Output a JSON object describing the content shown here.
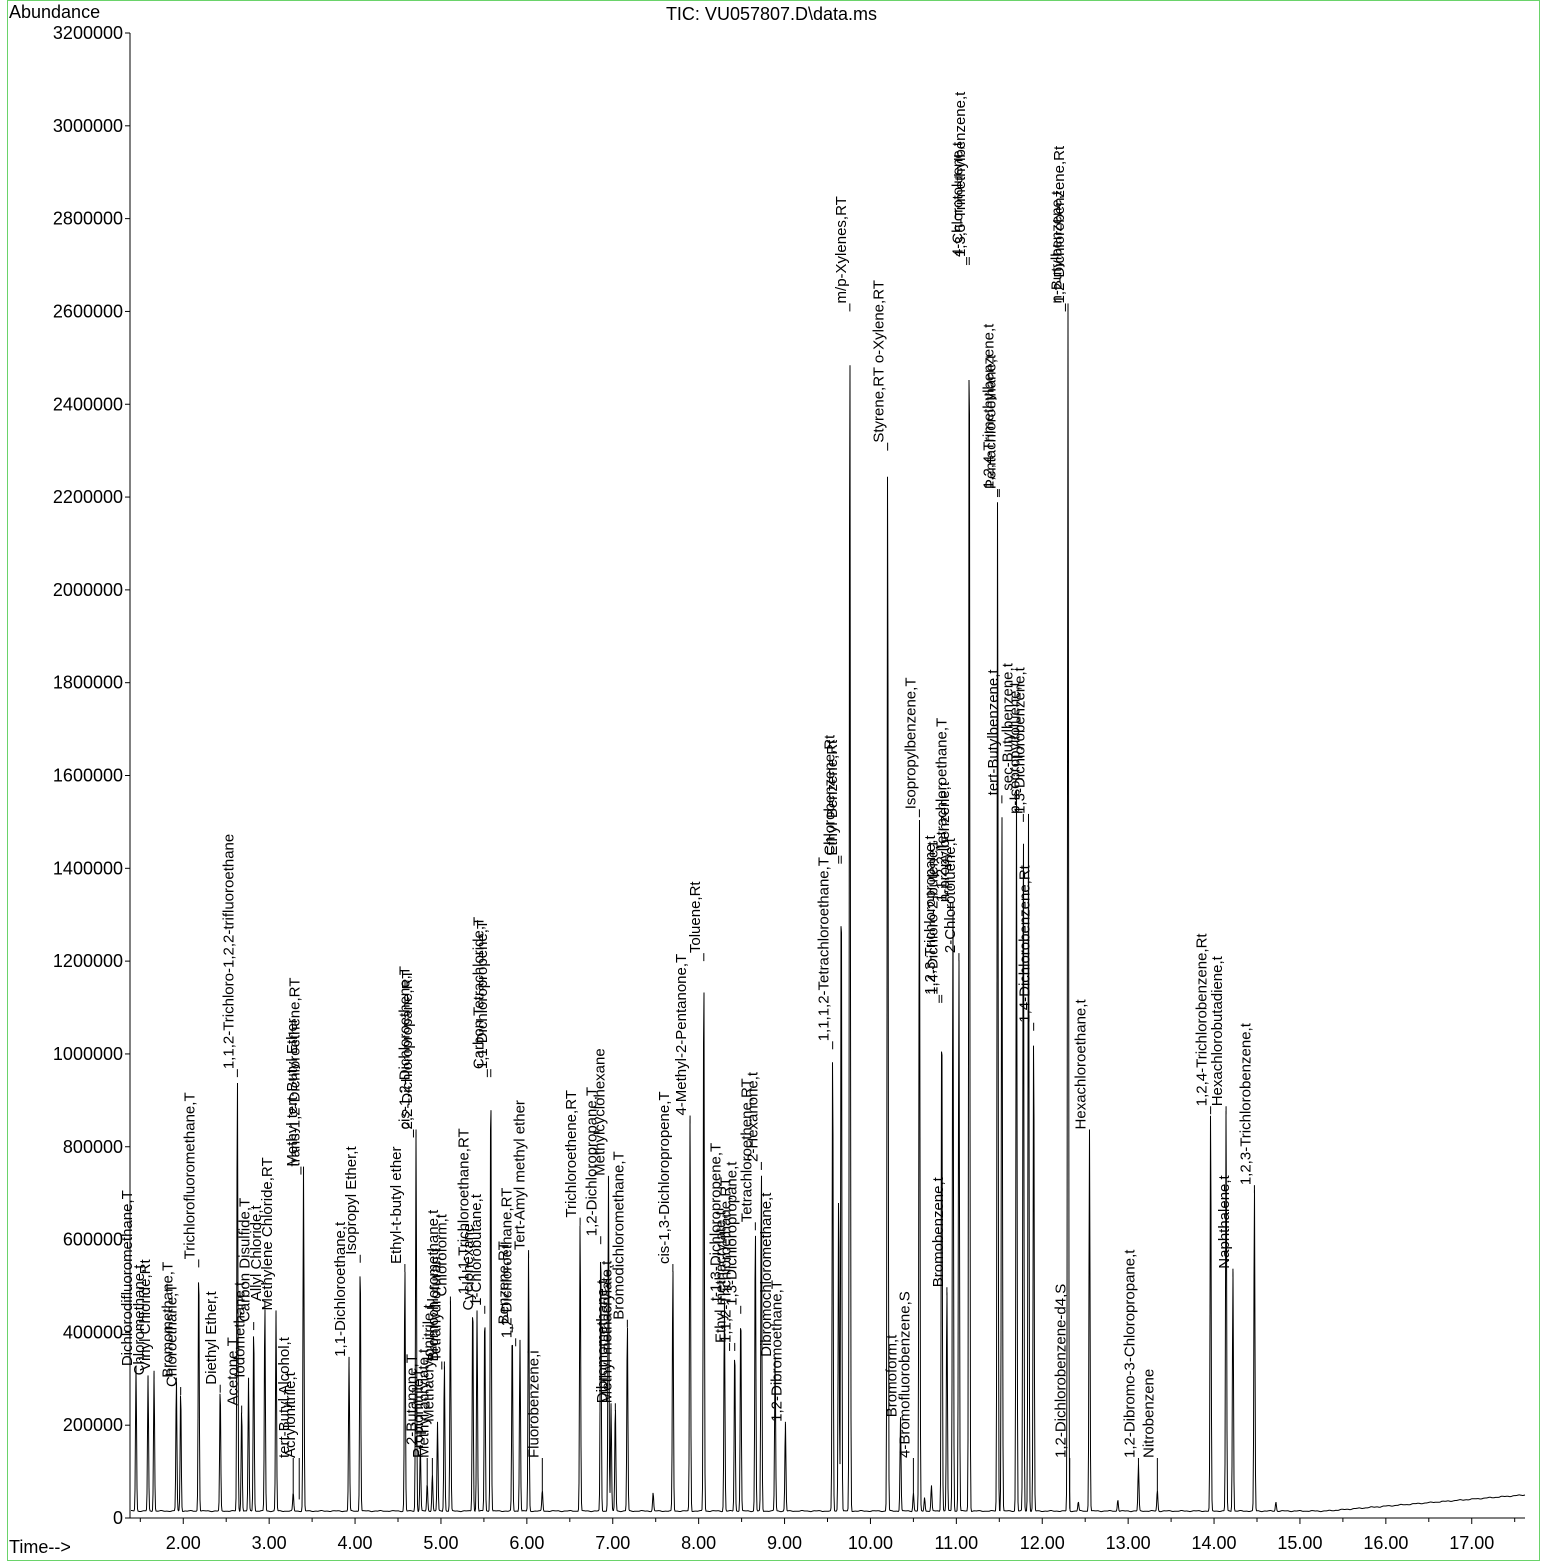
{
  "title": "TIC: VU057807.D\\data.ms",
  "ylabel": "Abundance",
  "xlabel": "Time-->",
  "colors": {
    "trace": "#000000",
    "frame": "#6ad36a",
    "axis": "#000000"
  },
  "chart_data": {
    "type": "line",
    "title": "TIC: VU057807.D\\data.ms",
    "xlabel": "Time-->",
    "ylabel": "Abundance",
    "xlim": [
      1.38,
      17.62
    ],
    "ylim": [
      0,
      3200000
    ],
    "x_ticks": [
      2.0,
      3.0,
      4.0,
      5.0,
      6.0,
      7.0,
      8.0,
      9.0,
      10.0,
      11.0,
      12.0,
      13.0,
      14.0,
      15.0,
      16.0,
      17.0
    ],
    "x_tick_labels": [
      "2.00",
      "3.00",
      "4.00",
      "5.00",
      "6.00",
      "7.00",
      "8.00",
      "9.00",
      "10.00",
      "11.00",
      "12.00",
      "13.00",
      "14.00",
      "15.00",
      "16.00",
      "17.00"
    ],
    "y_ticks": [
      0,
      200000,
      400000,
      600000,
      800000,
      1000000,
      1200000,
      1400000,
      1600000,
      1800000,
      2000000,
      2200000,
      2400000,
      2600000,
      2800000,
      3000000,
      3200000
    ],
    "grid": false,
    "baseline": 15000,
    "peaks": [
      {
        "rt": 1.45,
        "height": 310000
      },
      {
        "rt": 1.59,
        "height": 290000
      },
      {
        "rt": 1.66,
        "height": 300000
      },
      {
        "rt": 1.92,
        "height": 285000
      },
      {
        "rt": 1.97,
        "height": 265000
      },
      {
        "rt": 2.18,
        "height": 540000
      },
      {
        "rt": 2.43,
        "height": 270000
      },
      {
        "rt": 2.63,
        "height": 950000
      },
      {
        "rt": 2.68,
        "height": 225000
      },
      {
        "rt": 2.76,
        "height": 285000
      },
      {
        "rt": 2.82,
        "height": 405000
      },
      {
        "rt": 2.95,
        "height": 450000
      },
      {
        "rt": 3.08,
        "height": 430000
      },
      {
        "rt": 3.28,
        "height": 40000
      },
      {
        "rt": 3.4,
        "height": 740000
      },
      {
        "rt": 3.93,
        "height": 330000
      },
      {
        "rt": 4.06,
        "height": 550000
      },
      {
        "rt": 4.58,
        "height": 530000
      },
      {
        "rt": 4.71,
        "height": 820000
      },
      {
        "rt": 4.76,
        "height": 140000
      },
      {
        "rt": 4.84,
        "height": 60000
      },
      {
        "rt": 4.9,
        "height": 80000
      },
      {
        "rt": 4.96,
        "height": 190000
      },
      {
        "rt": 5.04,
        "height": 320000
      },
      {
        "rt": 5.11,
        "height": 460000
      },
      {
        "rt": 5.37,
        "height": 465000
      },
      {
        "rt": 5.42,
        "height": 430000
      },
      {
        "rt": 5.51,
        "height": 440000
      },
      {
        "rt": 5.58,
        "height": 950000
      },
      {
        "rt": 5.83,
        "height": 400000
      },
      {
        "rt": 5.92,
        "height": 370000
      },
      {
        "rt": 6.02,
        "height": 560000
      },
      {
        "rt": 6.18,
        "height": 45000
      },
      {
        "rt": 6.62,
        "height": 630000
      },
      {
        "rt": 6.86,
        "height": 590000
      },
      {
        "rt": 6.95,
        "height": 720000
      },
      {
        "rt": 6.98,
        "height": 230000
      },
      {
        "rt": 7.03,
        "height": 230000
      },
      {
        "rt": 7.17,
        "height": 410000
      },
      {
        "rt": 7.47,
        "height": 40000
      },
      {
        "rt": 7.7,
        "height": 530000
      },
      {
        "rt": 7.9,
        "height": 850000
      },
      {
        "rt": 8.06,
        "height": 1200000
      },
      {
        "rt": 8.3,
        "height": 450000
      },
      {
        "rt": 8.42,
        "height": 360000
      },
      {
        "rt": 8.49,
        "height": 440000
      },
      {
        "rt": 8.66,
        "height": 620000
      },
      {
        "rt": 8.73,
        "height": 750000
      },
      {
        "rt": 8.89,
        "height": 330000
      },
      {
        "rt": 9.01,
        "height": 190000
      },
      {
        "rt": 9.56,
        "height": 1010000
      },
      {
        "rt": 9.63,
        "height": 700000
      },
      {
        "rt": 9.66,
        "height": 1410000
      },
      {
        "rt": 9.76,
        "height": 2600000
      },
      {
        "rt": 10.2,
        "height": 2300000
      },
      {
        "rt": 10.35,
        "height": 200000
      },
      {
        "rt": 10.5,
        "height": 40000
      },
      {
        "rt": 10.57,
        "height": 1510000
      },
      {
        "rt": 10.63,
        "height": 30000
      },
      {
        "rt": 10.71,
        "height": 55000
      },
      {
        "rt": 10.83,
        "height": 1110000
      },
      {
        "rt": 10.89,
        "height": 480000
      },
      {
        "rt": 10.96,
        "height": 1310000
      },
      {
        "rt": 11.03,
        "height": 1200000
      },
      {
        "rt": 11.15,
        "height": 2700000
      },
      {
        "rt": 11.48,
        "height": 2200000
      },
      {
        "rt": 11.53,
        "height": 1540000
      },
      {
        "rt": 11.7,
        "height": 1550000
      },
      {
        "rt": 11.78,
        "height": 1500000
      },
      {
        "rt": 11.84,
        "height": 1500000
      },
      {
        "rt": 11.9,
        "height": 1050000
      },
      {
        "rt": 12.3,
        "height": 2600000
      },
      {
        "rt": 12.42,
        "height": 20000
      },
      {
        "rt": 12.55,
        "height": 820000
      },
      {
        "rt": 12.88,
        "height": 25000
      },
      {
        "rt": 13.12,
        "height": 100000
      },
      {
        "rt": 13.34,
        "height": 45000
      },
      {
        "rt": 13.96,
        "height": 870000
      },
      {
        "rt": 14.14,
        "height": 870000
      },
      {
        "rt": 14.22,
        "height": 520000
      },
      {
        "rt": 14.47,
        "height": 700000
      },
      {
        "rt": 14.72,
        "height": 20000
      }
    ],
    "annotations": [
      {
        "label": "Dichlorodifluoromethane,T",
        "rt": 1.45,
        "height": 310000
      },
      {
        "label": "Chloromethane,t",
        "rt": 1.59,
        "height": 290000
      },
      {
        "label": "Vinyl Chloride,Rt",
        "rt": 1.66,
        "height": 300000
      },
      {
        "label": "Bromomethane,T",
        "rt": 1.92,
        "height": 285000
      },
      {
        "label": "Chloroethane,T",
        "rt": 1.97,
        "height": 265000
      },
      {
        "label": "Trichlorofluoromethane,T",
        "rt": 2.18,
        "height": 540000
      },
      {
        "label": "Diethyl Ether,t",
        "rt": 2.43,
        "height": 270000
      },
      {
        "label": "1,1,2-Trichloro-1,2,2-trifluoroethane",
        "rt": 2.63,
        "height": 950000
      },
      {
        "label": "Acetone,T",
        "rt": 2.68,
        "height": 225000
      },
      {
        "label": "Iodomethane,t",
        "rt": 2.76,
        "height": 285000
      },
      {
        "label": "Carbon Disulfide,T",
        "rt": 2.82,
        "height": 405000
      },
      {
        "label": "Allyl Chloride,t",
        "rt": 2.95,
        "height": 450000
      },
      {
        "label": "Methylene Chloride,RT",
        "rt": 3.08,
        "height": 430000
      },
      {
        "label": "tert-Butyl Alcohol,t",
        "rt": 3.28,
        "height": 40000
      },
      {
        "label": "Acrylonitrile,t",
        "rt": 3.35,
        "height": 40000
      },
      {
        "label": "Methyl tert-Butyl Ether",
        "rt": 3.37,
        "height": 740000
      },
      {
        "label": "trans-1,2-Dichloroethene,RT",
        "rt": 3.4,
        "height": 740000
      },
      {
        "label": "1,1-Dichloroethane,t",
        "rt": 3.93,
        "height": 330000
      },
      {
        "label": "Isopropyl Ether,t",
        "rt": 4.06,
        "height": 550000
      },
      {
        "label": "Ethyl-t-butyl ether",
        "rt": 4.58,
        "height": 530000
      },
      {
        "label": "cis-1,2-Dichloroethene,T",
        "rt": 4.68,
        "height": 820000
      },
      {
        "label": "2,2-Dichloropropane,RT",
        "rt": 4.71,
        "height": 820000
      },
      {
        "label": "2-Butanone,T",
        "rt": 4.76,
        "height": 140000
      },
      {
        "label": "Propionitrile,t",
        "rt": 4.84,
        "height": 60000
      },
      {
        "label": "Methyl acrylate,t",
        "rt": 4.9,
        "height": 80000
      },
      {
        "label": "Methacrylonitrile,t",
        "rt": 4.96,
        "height": 190000
      },
      {
        "label": "Bromochloromethane,t",
        "rt": 5.01,
        "height": 320000
      },
      {
        "label": "Tetrahydrofuran,t",
        "rt": 5.04,
        "height": 320000
      },
      {
        "label": "Chloroform,t",
        "rt": 5.11,
        "height": 460000
      },
      {
        "label": "1,1,1-Trichloroethane,RT",
        "rt": 5.37,
        "height": 465000
      },
      {
        "label": "Cyclohexane",
        "rt": 5.42,
        "height": 430000
      },
      {
        "label": "1-Chlorobutane,t",
        "rt": 5.51,
        "height": 440000
      },
      {
        "label": "Carbon Tetrachloride,T",
        "rt": 5.54,
        "height": 950000
      },
      {
        "label": "1,1-Dichloropropene,T",
        "rt": 5.58,
        "height": 950000
      },
      {
        "label": "Benzene,RT",
        "rt": 5.83,
        "height": 400000
      },
      {
        "label": "1,2-Dichloroethane,RT",
        "rt": 5.87,
        "height": 370000
      },
      {
        "label": "Tert-Amyl methyl ether",
        "rt": 6.02,
        "height": 560000
      },
      {
        "label": "Fluorobenzene,i",
        "rt": 6.18,
        "height": 45000
      },
      {
        "label": "Trichloroethene,RT",
        "rt": 6.62,
        "height": 630000
      },
      {
        "label": "1,2-Dichloropropane,T",
        "rt": 6.86,
        "height": 590000
      },
      {
        "label": "Methylcyclohexane",
        "rt": 6.95,
        "height": 720000
      },
      {
        "label": "Dibromomethane,t",
        "rt": 6.98,
        "height": 230000
      },
      {
        "label": "Methyl methacrylate,t",
        "rt": 7.03,
        "height": 230000
      },
      {
        "label": "Bromodichloromethane,T",
        "rt": 7.17,
        "height": 410000
      },
      {
        "label": "cis-1,3-Dichloropropene,T",
        "rt": 7.7,
        "height": 530000
      },
      {
        "label": "4-Methyl-2-Pentanone,T",
        "rt": 7.9,
        "height": 850000
      },
      {
        "label": "Toluene,Rt",
        "rt": 8.06,
        "height": 1200000
      },
      {
        "label": "t-1,3-Dichloropropene,T",
        "rt": 8.3,
        "height": 450000
      },
      {
        "label": "Ethyl methacrylate,t",
        "rt": 8.36,
        "height": 360000
      },
      {
        "label": "1,1,2-Trichloroethane,RT",
        "rt": 8.42,
        "height": 360000
      },
      {
        "label": "1,3-Dichloropropane,t",
        "rt": 8.49,
        "height": 440000
      },
      {
        "label": "Tetrachloroethene,RT",
        "rt": 8.66,
        "height": 620000
      },
      {
        "label": "2-Hexanone,t",
        "rt": 8.73,
        "height": 750000
      },
      {
        "label": "Dibromochloromethane,t",
        "rt": 8.89,
        "height": 330000
      },
      {
        "label": "1,2-Dibromoethane,T",
        "rt": 9.01,
        "height": 190000
      },
      {
        "label": "1,1,1,2-Tetrachloroethane,T",
        "rt": 9.56,
        "height": 1010000
      },
      {
        "label": "Chlorobenzene,Rt",
        "rt": 9.63,
        "height": 1410000
      },
      {
        "label": "Ethyl Benzene,Rt",
        "rt": 9.66,
        "height": 1410000
      },
      {
        "label": "m/p-Xylenes,RT",
        "rt": 9.76,
        "height": 2600000
      },
      {
        "label": "Styrene,RT o-Xylene,RT",
        "rt": 10.2,
        "height": 2300000
      },
      {
        "label": "Bromoform,t",
        "rt": 10.35,
        "height": 200000
      },
      {
        "label": "4-Bromofluorobenzene,S",
        "rt": 10.5,
        "height": 40000
      },
      {
        "label": "Isopropylbenzene,T",
        "rt": 10.57,
        "height": 1510000
      },
      {
        "label": "1,2,3-Trichloropropane,t",
        "rt": 10.8,
        "height": 1110000
      },
      {
        "label": "1,4-Dichloro-2-butene,t",
        "rt": 10.83,
        "height": 1110000
      },
      {
        "label": "Bromobenzene,t",
        "rt": 10.89,
        "height": 480000
      },
      {
        "label": "1,1,2,2-Tetrachloroethane,T",
        "rt": 10.93,
        "height": 1310000
      },
      {
        "label": "n-propylbenzene,t",
        "rt": 10.96,
        "height": 1310000
      },
      {
        "label": "2-Chlorotoluene,t",
        "rt": 11.03,
        "height": 1200000
      },
      {
        "label": "4-Chlorotoluene,t",
        "rt": 11.12,
        "height": 2700000
      },
      {
        "label": "1,3,5-Trimethylbenzene,t",
        "rt": 11.15,
        "height": 2700000
      },
      {
        "label": "1,2,4-Trimethylbenzene,t",
        "rt": 11.48,
        "height": 2200000
      },
      {
        "label": "Pentachloroethane,t",
        "rt": 11.5,
        "height": 2200000
      },
      {
        "label": "tert-Butylbenzene,t",
        "rt": 11.53,
        "height": 1540000
      },
      {
        "label": "sec-Butylbenzene,t",
        "rt": 11.7,
        "height": 1550000
      },
      {
        "label": "p-Isopropyltoluene,t",
        "rt": 11.78,
        "height": 1500000
      },
      {
        "label": "1,3-Dichlorobenzene,t",
        "rt": 11.84,
        "height": 1500000
      },
      {
        "label": "1,4-Dichlorobenzene,Rt",
        "rt": 11.9,
        "height": 1050000
      },
      {
        "label": "n-Butylbenzene,t",
        "rt": 12.27,
        "height": 2600000
      },
      {
        "label": "1,2-Dichlorobenzene,Rt",
        "rt": 12.3,
        "height": 2600000
      },
      {
        "label": "1,2-Dichlorobenzene-d4,S",
        "rt": 12.32,
        "height": 20000
      },
      {
        "label": "Hexachloroethane,t",
        "rt": 12.55,
        "height": 820000
      },
      {
        "label": "1,2-Dibromo-3-Chloropropane,t",
        "rt": 13.12,
        "height": 100000
      },
      {
        "label": "Nitrobenzene",
        "rt": 13.34,
        "height": 45000
      },
      {
        "label": "1,2,4-Trichlorobenzene,Rt",
        "rt": 13.96,
        "height": 870000
      },
      {
        "label": "Hexachlorobutadiene,t",
        "rt": 14.14,
        "height": 870000
      },
      {
        "label": "Naphthalene,t",
        "rt": 14.22,
        "height": 520000
      },
      {
        "label": "1,2,3-Trichlorobenzene,t",
        "rt": 14.47,
        "height": 700000
      }
    ]
  }
}
